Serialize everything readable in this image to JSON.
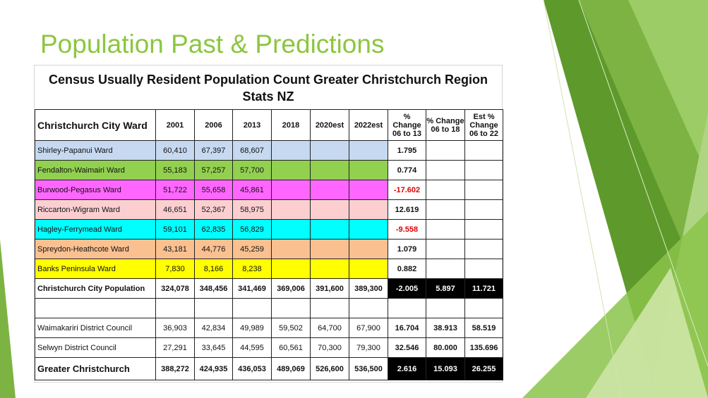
{
  "slide": {
    "title": "Population Past & Predictions"
  },
  "table": {
    "heading_line1": "Census Usually Resident Population Count Greater Christchurch Region",
    "heading_line2": "Stats NZ",
    "columns": [
      "Christchurch City Ward",
      "2001",
      "2006",
      "2013",
      "2018",
      "2020est",
      "2022est",
      "% Change 06 to 13",
      "% Change 06 to 18",
      "Est % Change 06 to 22"
    ],
    "wards": [
      {
        "name": "Shirley-Papanui Ward",
        "y2001": "60,410",
        "y2006": "67,397",
        "y2013": "68,607",
        "y2018": "",
        "y2020est": "",
        "y2022est": "",
        "ch06_13": "1.795",
        "ch06_18": "",
        "ch06_22": "",
        "color": "#c6d9f0"
      },
      {
        "name": "Fendalton-Waimairi Ward",
        "y2001": "55,183",
        "y2006": "57,257",
        "y2013": "57,700",
        "y2018": "",
        "y2020est": "",
        "y2022est": "",
        "ch06_13": "0.774",
        "ch06_18": "",
        "ch06_22": "",
        "color": "#92d050"
      },
      {
        "name": "Burwood-Pegasus Ward",
        "y2001": "51,722",
        "y2006": "55,658",
        "y2013": "45,861",
        "y2018": "",
        "y2020est": "",
        "y2022est": "",
        "ch06_13": "-17.602",
        "ch06_18": "",
        "ch06_22": "",
        "color": "#ff66ff"
      },
      {
        "name": "Riccarton-Wigram Ward",
        "y2001": "46,651",
        "y2006": "52,367",
        "y2013": "58,975",
        "y2018": "",
        "y2020est": "",
        "y2022est": "",
        "ch06_13": "12.619",
        "ch06_18": "",
        "ch06_22": "",
        "color": "#fbcfd0"
      },
      {
        "name": "Hagley-Ferrymead Ward",
        "y2001": "59,101",
        "y2006": "62,835",
        "y2013": "56,829",
        "y2018": "",
        "y2020est": "",
        "y2022est": "",
        "ch06_13": "-9.558",
        "ch06_18": "",
        "ch06_22": "",
        "color": "#00ffff"
      },
      {
        "name": "Spreydon-Heathcote Ward",
        "y2001": "43,181",
        "y2006": "44,776",
        "y2013": "45,259",
        "y2018": "",
        "y2020est": "",
        "y2022est": "",
        "ch06_13": "1.079",
        "ch06_18": "",
        "ch06_22": "",
        "color": "#fac090"
      },
      {
        "name": "Banks Peninsula Ward",
        "y2001": "7,830",
        "y2006": "8,166",
        "y2013": "8,238",
        "y2018": "",
        "y2020est": "",
        "y2022est": "",
        "ch06_13": "0.882",
        "ch06_18": "",
        "ch06_22": "",
        "color": "#ffff00"
      }
    ],
    "city_total": {
      "name": "Christchurch City Population",
      "y2001": "324,078",
      "y2006": "348,456",
      "y2013": "341,469",
      "y2018": "369,006",
      "y2020est": "391,600",
      "y2022est": "389,300",
      "ch06_13": "-2.005",
      "ch06_18": "5.897",
      "ch06_22": "11.721"
    },
    "districts": [
      {
        "name": "Waimakariri District Council",
        "y2001": "36,903",
        "y2006": "42,834",
        "y2013": "49,989",
        "y2018": "59,502",
        "y2020est": "64,700",
        "y2022est": "67,900",
        "ch06_13": "16.704",
        "ch06_18": "38.913",
        "ch06_22": "58.519"
      },
      {
        "name": "Selwyn District Council",
        "y2001": "27,291",
        "y2006": "33,645",
        "y2013": "44,595",
        "y2018": "60,561",
        "y2020est": "70,300",
        "y2022est": "79,300",
        "ch06_13": "32.546",
        "ch06_18": "80.000",
        "ch06_22": "135.696"
      }
    ],
    "grand_total": {
      "name": "Greater Christchurch",
      "y2001": "388,272",
      "y2006": "424,935",
      "y2013": "436,053",
      "y2018": "489,069",
      "y2020est": "526,600",
      "y2022est": "536,500",
      "ch06_13": "2.616",
      "ch06_18": "15.093",
      "ch06_22": "26.255"
    }
  },
  "colors": {
    "title_green": "#8cc63f",
    "negative_red": "#e00000"
  }
}
